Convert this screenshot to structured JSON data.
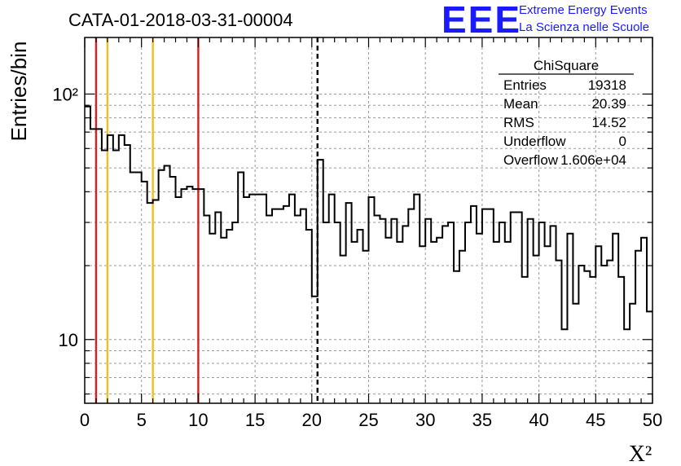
{
  "header": {
    "title": "CATA-01-2018-03-31-00004",
    "logo_letters": "EEE",
    "logo_line1": "Extreme Energy Events",
    "logo_line2": "La Scienza nelle Scuole"
  },
  "stats": {
    "name": "ChiSquare",
    "rows": [
      {
        "label": "Entries",
        "value": "19318"
      },
      {
        "label": "Mean",
        "value": "20.39"
      },
      {
        "label": "RMS",
        "value": "14.52"
      },
      {
        "label": "Underflow",
        "value": "0"
      },
      {
        "label": "Overflow",
        "value": "1.606e+04"
      }
    ]
  },
  "chart_data": {
    "type": "histogram",
    "xlabel": "X²",
    "ylabel": "Entries/bin",
    "xlim": [
      0,
      50
    ],
    "ylim": [
      5.5,
      170
    ],
    "log_y": true,
    "grid": true,
    "bin_width": 0.5,
    "x_ticks": [
      "0",
      "5",
      "10",
      "15",
      "20",
      "25",
      "30",
      "35",
      "40",
      "45",
      "50"
    ],
    "y_ticks": [
      {
        "value": 10,
        "label": "10"
      },
      {
        "value": 100,
        "label": "10²"
      }
    ],
    "counts": [
      89,
      72,
      72,
      59,
      68,
      59,
      68,
      62,
      48,
      48,
      44,
      36,
      37,
      49,
      51,
      46,
      38,
      41,
      42,
      41,
      41,
      32,
      27,
      33,
      26,
      28,
      30,
      48,
      38,
      39,
      39,
      39,
      32,
      34,
      34,
      35,
      39,
      32,
      34,
      28,
      15,
      54,
      30,
      39,
      30,
      22,
      36,
      25,
      28,
      23,
      38,
      32,
      31,
      26,
      31,
      25,
      29,
      34,
      39,
      24,
      31,
      25,
      26,
      29,
      30,
      19,
      23,
      30,
      35,
      27,
      34,
      34,
      25,
      30,
      25,
      33,
      33,
      18,
      31,
      22,
      30,
      24,
      29,
      21,
      11,
      27,
      14,
      20,
      19,
      18,
      24,
      20,
      21,
      27,
      18,
      11,
      14,
      23,
      26,
      13
    ],
    "vlines": [
      {
        "x": 1,
        "color": "#d42020",
        "style": "solid"
      },
      {
        "x": 2,
        "color": "#f0c020",
        "style": "solid"
      },
      {
        "x": 6,
        "color": "#f0c020",
        "style": "solid"
      },
      {
        "x": 10,
        "color": "#d42020",
        "style": "solid"
      },
      {
        "x": 20.5,
        "color": "#000000",
        "style": "dashed"
      }
    ]
  }
}
